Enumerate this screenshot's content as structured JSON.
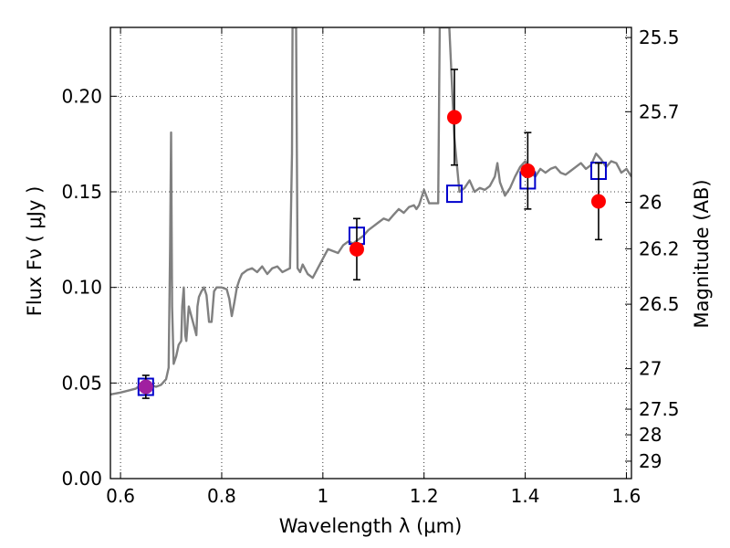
{
  "chart_data": {
    "type": "line",
    "xlabel": "Wavelength  λ (μm)",
    "ylabel": "Flux  Fν  ( μJy )",
    "ylabel_right": "Magnitude (AB)",
    "xlim": [
      0.58,
      1.61
    ],
    "ylim": [
      0.0,
      0.236
    ],
    "grid": true,
    "x_ticks": [
      0.6,
      0.8,
      1.0,
      1.2,
      1.4,
      1.6
    ],
    "x_tick_labels": [
      "0.6",
      "0.8",
      "1",
      "1.2",
      "1.4",
      "1.6"
    ],
    "y_ticks": [
      0.0,
      0.05,
      0.1,
      0.15,
      0.2
    ],
    "y_tick_labels": [
      "0.00",
      "0.05",
      "0.10",
      "0.15",
      "0.20"
    ],
    "right_ticks": [
      {
        "label": "25.5",
        "flux": 0.2307
      },
      {
        "label": "25.7",
        "flux": 0.1919
      },
      {
        "label": "26",
        "flux": 0.1445
      },
      {
        "label": "26.2",
        "flux": 0.1202
      },
      {
        "label": "26.5",
        "flux": 0.0912
      },
      {
        "label": "27",
        "flux": 0.0575
      },
      {
        "label": "27.5",
        "flux": 0.0363
      },
      {
        "label": "28",
        "flux": 0.0229
      },
      {
        "label": "29",
        "flux": 0.0091
      }
    ],
    "series": [
      {
        "kind": "line",
        "color": "#808080",
        "x": [
          0.58,
          0.6,
          0.615,
          0.63,
          0.64,
          0.65,
          0.66,
          0.67,
          0.68,
          0.69,
          0.695,
          0.698,
          0.7,
          0.702,
          0.705,
          0.71,
          0.715,
          0.72,
          0.722,
          0.725,
          0.728,
          0.73,
          0.735,
          0.74,
          0.745,
          0.75,
          0.752,
          0.755,
          0.76,
          0.765,
          0.77,
          0.775,
          0.78,
          0.785,
          0.79,
          0.8,
          0.81,
          0.815,
          0.82,
          0.825,
          0.83,
          0.835,
          0.84,
          0.85,
          0.86,
          0.87,
          0.88,
          0.89,
          0.9,
          0.91,
          0.92,
          0.935,
          0.939,
          0.94,
          0.942,
          0.945,
          0.947,
          0.95,
          0.955,
          0.96,
          0.97,
          0.98,
          0.99,
          1.0,
          1.01,
          1.02,
          1.03,
          1.04,
          1.05,
          1.06,
          1.07,
          1.08,
          1.09,
          1.1,
          1.11,
          1.12,
          1.13,
          1.14,
          1.15,
          1.16,
          1.17,
          1.18,
          1.185,
          1.19,
          1.2,
          1.21,
          1.22,
          1.228,
          1.231,
          1.233,
          1.236,
          1.24,
          1.245,
          1.25,
          1.26,
          1.27,
          1.28,
          1.29,
          1.3,
          1.31,
          1.32,
          1.33,
          1.34,
          1.345,
          1.35,
          1.36,
          1.37,
          1.38,
          1.39,
          1.4,
          1.41,
          1.42,
          1.43,
          1.44,
          1.45,
          1.46,
          1.47,
          1.48,
          1.49,
          1.5,
          1.51,
          1.52,
          1.53,
          1.54,
          1.55,
          1.56,
          1.57,
          1.58,
          1.59,
          1.6,
          1.61
        ],
        "y": [
          0.044,
          0.045,
          0.046,
          0.047,
          0.049,
          0.048,
          0.049,
          0.048,
          0.049,
          0.052,
          0.058,
          0.12,
          0.181,
          0.09,
          0.06,
          0.064,
          0.07,
          0.072,
          0.09,
          0.1,
          0.075,
          0.072,
          0.09,
          0.085,
          0.08,
          0.075,
          0.09,
          0.095,
          0.098,
          0.1,
          0.096,
          0.082,
          0.082,
          0.098,
          0.1,
          0.1,
          0.099,
          0.094,
          0.085,
          0.092,
          0.1,
          0.104,
          0.107,
          0.109,
          0.11,
          0.108,
          0.111,
          0.107,
          0.11,
          0.111,
          0.108,
          0.11,
          0.17,
          0.236,
          0.236,
          0.236,
          0.236,
          0.11,
          0.108,
          0.112,
          0.107,
          0.105,
          0.11,
          0.115,
          0.12,
          0.119,
          0.118,
          0.122,
          0.124,
          0.123,
          0.125,
          0.127,
          0.13,
          0.132,
          0.134,
          0.136,
          0.135,
          0.138,
          0.141,
          0.139,
          0.142,
          0.143,
          0.141,
          0.143,
          0.151,
          0.144,
          0.144,
          0.144,
          0.236,
          0.236,
          0.236,
          0.236,
          0.236,
          0.236,
          0.178,
          0.15,
          0.152,
          0.156,
          0.15,
          0.152,
          0.151,
          0.153,
          0.158,
          0.165,
          0.155,
          0.148,
          0.152,
          0.158,
          0.163,
          0.166,
          0.16,
          0.158,
          0.162,
          0.16,
          0.162,
          0.163,
          0.16,
          0.159,
          0.161,
          0.163,
          0.165,
          0.162,
          0.164,
          0.17,
          0.167,
          0.163,
          0.166,
          0.165,
          0.16,
          0.162,
          0.158
        ]
      },
      {
        "kind": "scatter",
        "marker": "square",
        "color": "#0000cc",
        "x": [
          0.65,
          1.067,
          1.26,
          1.405,
          1.545
        ],
        "y": [
          0.048,
          0.127,
          0.149,
          0.156,
          0.161
        ]
      },
      {
        "kind": "errorbar",
        "marker": "circle",
        "color": "#ff0000",
        "x": [
          0.65,
          1.067,
          1.26,
          1.405,
          1.545
        ],
        "y": [
          0.048,
          0.12,
          0.189,
          0.161,
          0.145
        ],
        "yerr": [
          0.006,
          0.016,
          0.025,
          0.02,
          0.02
        ],
        "first_point_color": "#a020a0"
      }
    ]
  }
}
